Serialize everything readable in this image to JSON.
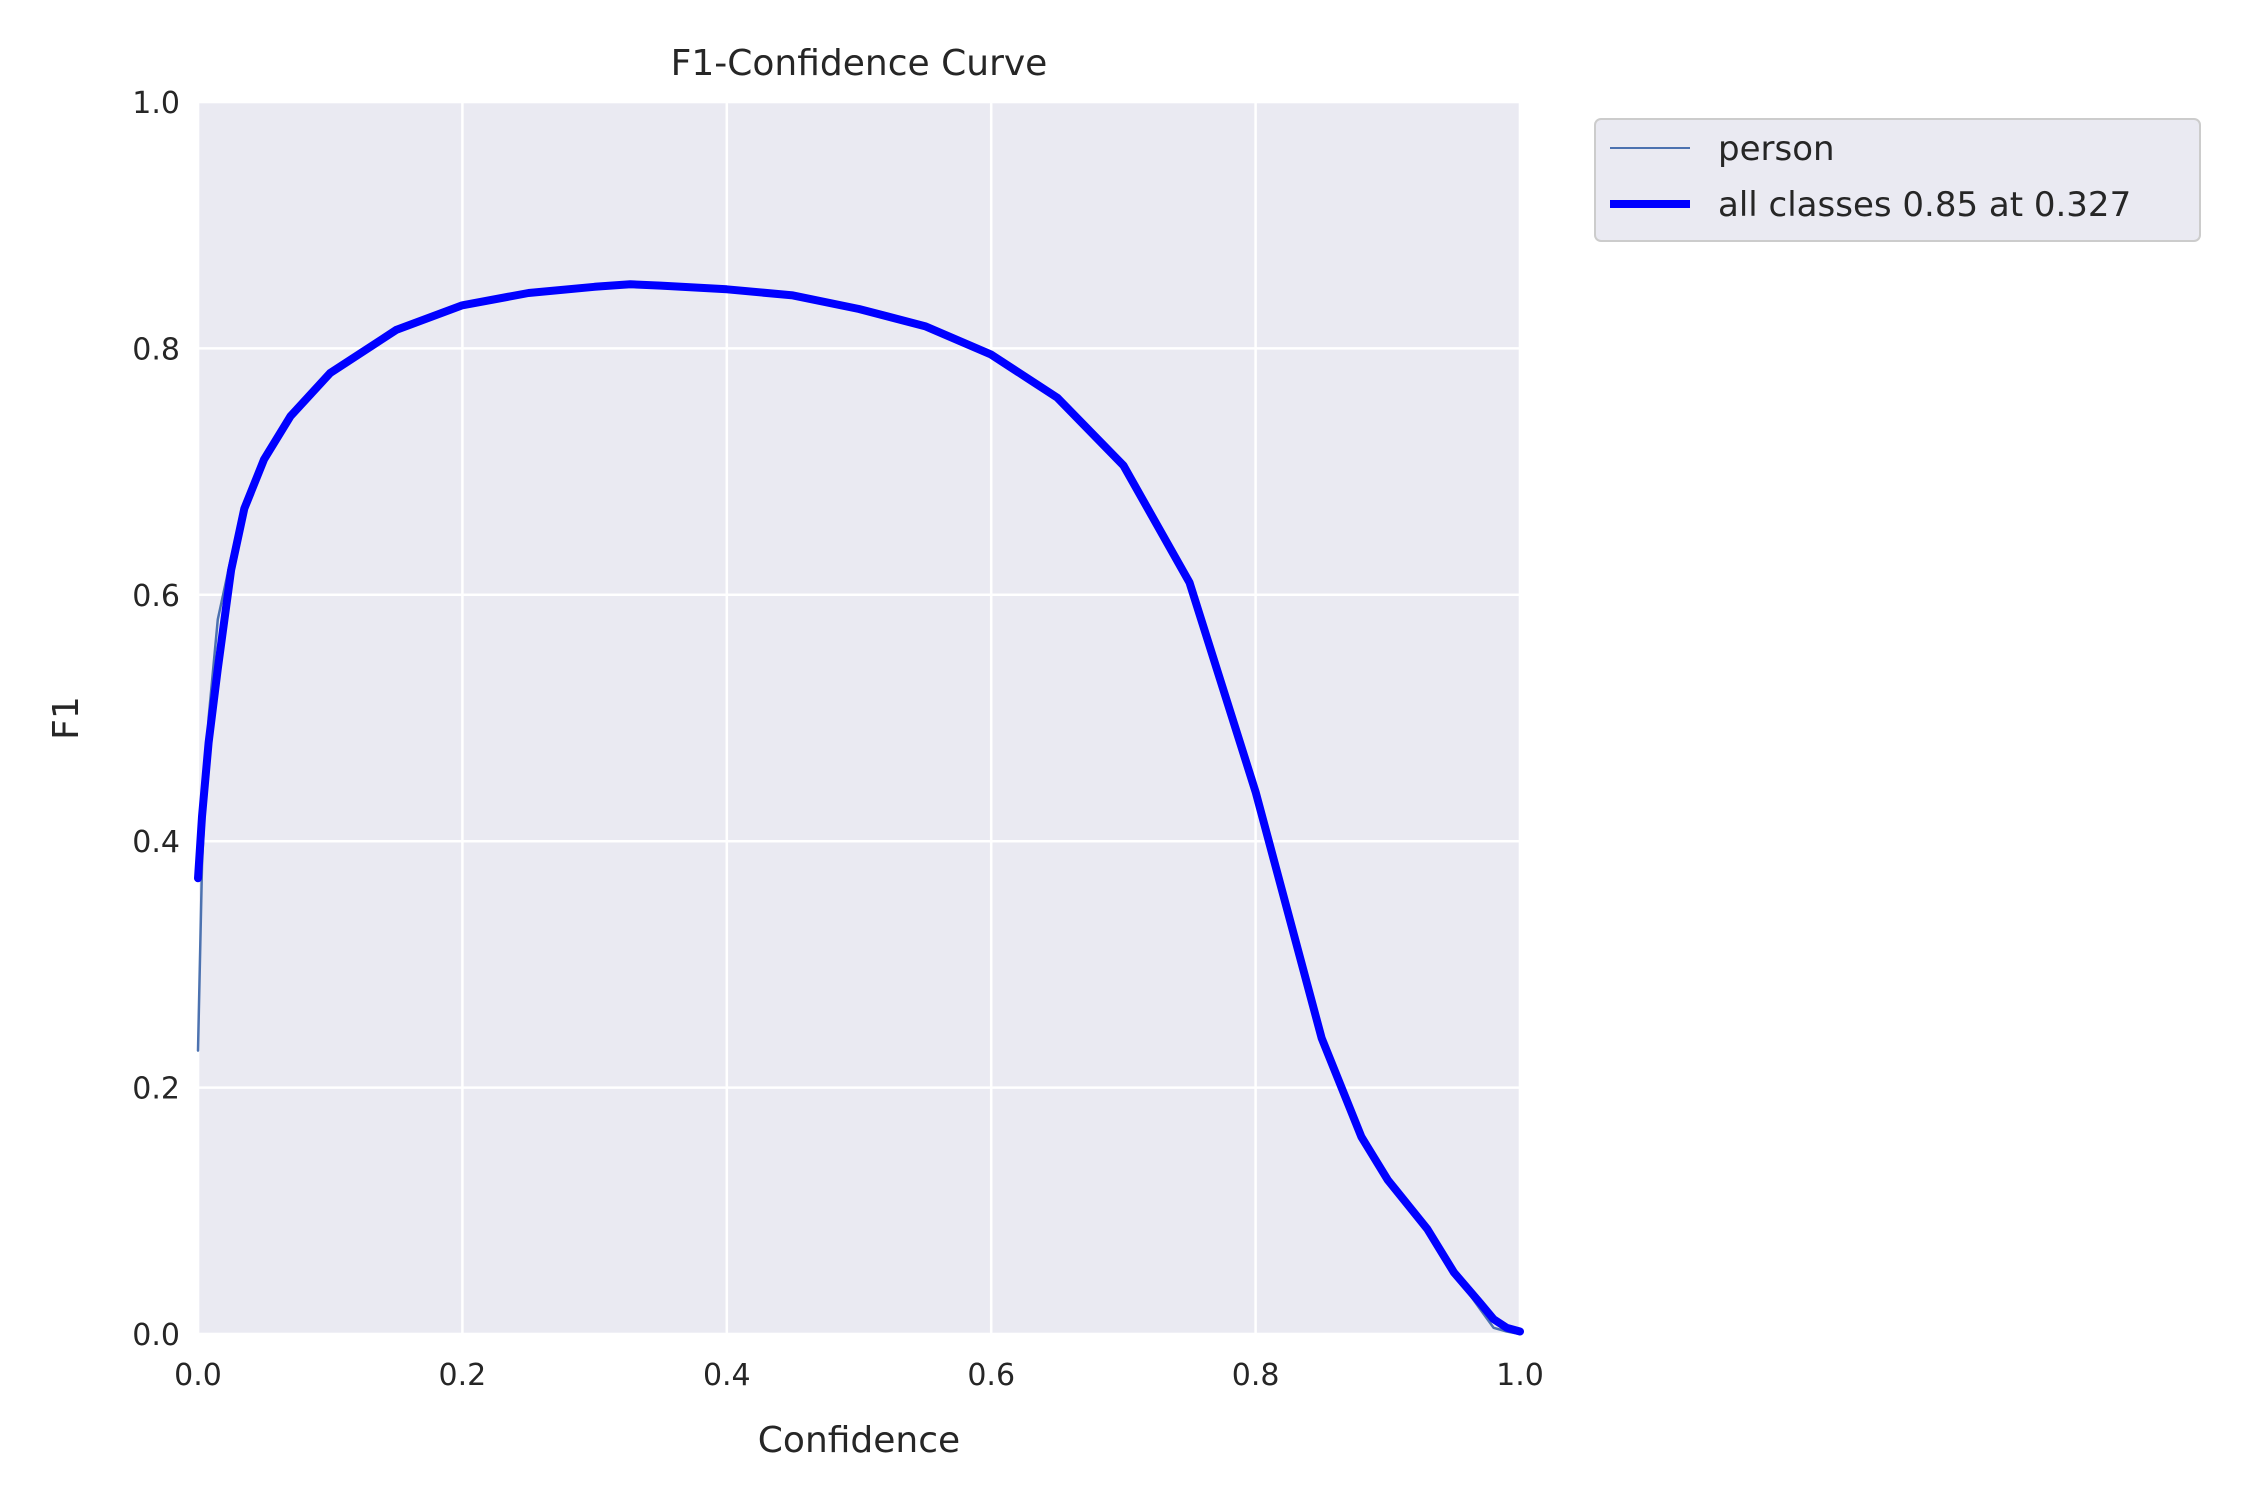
{
  "chart_data": {
    "type": "line",
    "title": "F1-Confidence Curve",
    "xlabel": "Confidence",
    "ylabel": "F1",
    "xlim": [
      0,
      1
    ],
    "ylim": [
      0,
      1
    ],
    "xticks": [
      "0.0",
      "0.2",
      "0.4",
      "0.6",
      "0.8",
      "1.0"
    ],
    "yticks": [
      "0.0",
      "0.2",
      "0.4",
      "0.6",
      "0.8",
      "1.0"
    ],
    "grid": true,
    "legend_position": "outside-top-right",
    "series": [
      {
        "name": "person",
        "color": "#4c72b0",
        "x": [
          0.0,
          0.003,
          0.008,
          0.015,
          0.025,
          0.035,
          0.05,
          0.07,
          0.1,
          0.15,
          0.2,
          0.25,
          0.3,
          0.327,
          0.35,
          0.4,
          0.45,
          0.5,
          0.55,
          0.6,
          0.65,
          0.7,
          0.75,
          0.8,
          0.85,
          0.88,
          0.9,
          0.93,
          0.95,
          0.97,
          0.98,
          0.99,
          1.0
        ],
        "values": [
          0.23,
          0.38,
          0.5,
          0.58,
          0.63,
          0.67,
          0.71,
          0.745,
          0.78,
          0.815,
          0.835,
          0.845,
          0.85,
          0.852,
          0.851,
          0.848,
          0.843,
          0.832,
          0.818,
          0.795,
          0.76,
          0.705,
          0.61,
          0.44,
          0.24,
          0.16,
          0.125,
          0.085,
          0.05,
          0.02,
          0.005,
          0.002,
          0.0
        ]
      },
      {
        "name": "all classes 0.85 at 0.327",
        "color": "#0000ff",
        "x": [
          0.0,
          0.003,
          0.008,
          0.015,
          0.025,
          0.035,
          0.05,
          0.07,
          0.1,
          0.15,
          0.2,
          0.25,
          0.3,
          0.327,
          0.35,
          0.4,
          0.45,
          0.5,
          0.55,
          0.6,
          0.65,
          0.7,
          0.75,
          0.8,
          0.85,
          0.88,
          0.9,
          0.93,
          0.95,
          0.97,
          0.98,
          0.99,
          1.0
        ],
        "values": [
          0.37,
          0.42,
          0.48,
          0.54,
          0.62,
          0.67,
          0.71,
          0.745,
          0.78,
          0.815,
          0.835,
          0.845,
          0.85,
          0.852,
          0.851,
          0.848,
          0.843,
          0.832,
          0.818,
          0.795,
          0.76,
          0.705,
          0.61,
          0.44,
          0.24,
          0.16,
          0.125,
          0.085,
          0.05,
          0.025,
          0.012,
          0.005,
          0.002
        ]
      }
    ]
  }
}
